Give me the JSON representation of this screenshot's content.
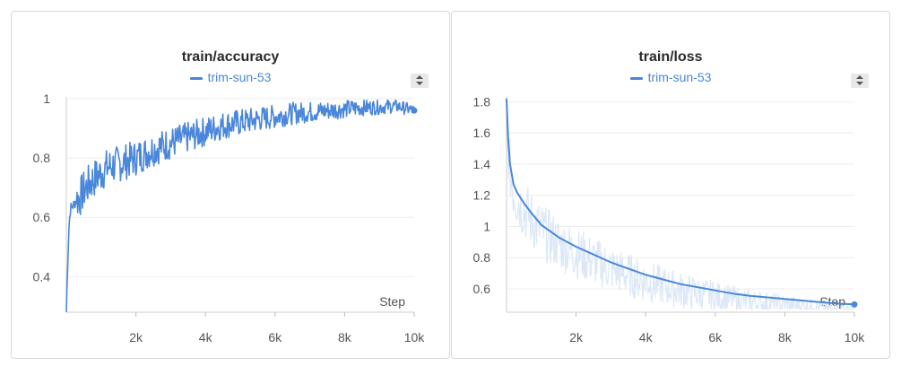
{
  "panels": [
    {
      "title": "train/accuracy",
      "legend": "trim-sun-53",
      "step_label": "Step"
    },
    {
      "title": "train/loss",
      "legend": "trim-sun-53",
      "step_label": "Step"
    }
  ],
  "colors": {
    "series": "#4a86d9",
    "raw_light": "#dce8f8",
    "grid": "#eeeeee",
    "axis": "#555555"
  },
  "chart_data": [
    {
      "type": "line",
      "title": "train/accuracy",
      "xlabel": "Step",
      "ylabel": "",
      "xlim": [
        0,
        10000
      ],
      "ylim": [
        0.28,
        1.0
      ],
      "x_ticks": [
        "2k",
        "4k",
        "6k",
        "8k",
        "10k"
      ],
      "y_ticks": [
        "0.4",
        "0.6",
        "0.8",
        "1"
      ],
      "grid": true,
      "legend_position": "top",
      "series": [
        {
          "name": "trim-sun-53",
          "x": [
            0,
            40,
            80,
            120,
            200,
            300,
            400,
            500,
            700,
            900,
            1200,
            1500,
            2000,
            2500,
            3000,
            3500,
            4000,
            4500,
            5000,
            5500,
            6000,
            6500,
            7000,
            7500,
            8000,
            8500,
            9000,
            9500,
            10000
          ],
          "values": [
            0.28,
            0.45,
            0.58,
            0.63,
            0.64,
            0.66,
            0.67,
            0.69,
            0.72,
            0.74,
            0.77,
            0.78,
            0.8,
            0.83,
            0.85,
            0.87,
            0.89,
            0.91,
            0.92,
            0.93,
            0.94,
            0.95,
            0.955,
            0.96,
            0.965,
            0.97,
            0.972,
            0.975,
            0.96
          ]
        }
      ]
    },
    {
      "type": "line",
      "title": "train/loss",
      "xlabel": "Step",
      "ylabel": "",
      "xlim": [
        0,
        10000
      ],
      "ylim": [
        0.45,
        1.82
      ],
      "x_ticks": [
        "2k",
        "4k",
        "6k",
        "8k",
        "10k"
      ],
      "y_ticks": [
        "0.6",
        "0.8",
        "1",
        "1.2",
        "1.4",
        "1.6",
        "1.8"
      ],
      "grid": true,
      "legend_position": "top",
      "series": [
        {
          "name": "trim-sun-53",
          "x": [
            0,
            50,
            100,
            200,
            300,
            500,
            700,
            1000,
            1500,
            2000,
            2500,
            3000,
            3500,
            4000,
            4500,
            5000,
            5500,
            6000,
            6500,
            7000,
            7500,
            8000,
            8500,
            9000,
            9500,
            10000
          ],
          "values": [
            1.82,
            1.55,
            1.4,
            1.27,
            1.22,
            1.15,
            1.09,
            1.01,
            0.93,
            0.87,
            0.82,
            0.77,
            0.73,
            0.69,
            0.66,
            0.63,
            0.61,
            0.59,
            0.57,
            0.555,
            0.545,
            0.535,
            0.525,
            0.515,
            0.505,
            0.5
          ]
        }
      ]
    }
  ]
}
